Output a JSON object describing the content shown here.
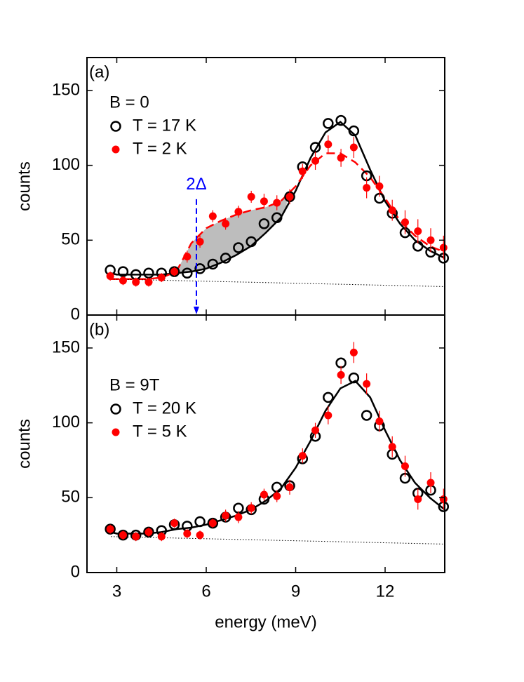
{
  "chart_data": [
    {
      "type": "scatter",
      "panel_label": "(a)",
      "annotation": "B = 0",
      "ylabel": "counts",
      "xlim": [
        2,
        14
      ],
      "ylim": [
        0,
        172
      ],
      "xticks": [
        3,
        6,
        9,
        12
      ],
      "yticks": [
        0,
        50,
        100,
        150
      ],
      "series": [
        {
          "name": "T = 17 K",
          "color": "#000000",
          "marker": "open",
          "x": [
            2.78,
            3.21,
            3.64,
            4.07,
            4.5,
            4.93,
            5.36,
            5.79,
            6.22,
            6.65,
            7.08,
            7.51,
            7.94,
            8.37,
            8.8,
            9.23,
            9.66,
            10.09,
            10.52,
            10.95,
            11.38,
            11.81,
            12.24,
            12.67,
            13.1,
            13.53,
            13.96
          ],
          "values": [
            30,
            29,
            27,
            28,
            28,
            29,
            28,
            31,
            34,
            38,
            45,
            49,
            61,
            65,
            79,
            99,
            112,
            128,
            130,
            123,
            93,
            78,
            68,
            55,
            46,
            42,
            38
          ]
        },
        {
          "name": "T = 2 K",
          "color": "#ff0000",
          "marker": "filled",
          "x": [
            2.78,
            3.21,
            3.64,
            4.07,
            4.5,
            4.93,
            5.36,
            5.79,
            6.22,
            6.65,
            7.08,
            7.51,
            7.94,
            8.37,
            8.8,
            9.23,
            9.66,
            10.09,
            10.52,
            10.95,
            11.38,
            11.81,
            12.24,
            12.67,
            13.1,
            13.53,
            13.96
          ],
          "values": [
            26,
            23,
            22,
            22,
            25,
            29,
            39,
            49,
            66,
            61,
            69,
            79,
            76,
            75,
            79,
            96,
            103,
            114,
            105,
            112,
            85,
            86,
            70,
            62,
            56,
            50,
            45
          ],
          "errors": [
            3,
            3,
            3,
            3,
            3,
            3,
            4,
            4,
            4,
            4,
            4,
            4,
            5,
            5,
            5,
            5,
            6,
            6,
            6,
            7,
            7,
            7,
            7,
            8,
            8,
            8,
            8
          ]
        }
      ],
      "lines": [
        {
          "color": "#000000",
          "style": "solid",
          "x": [
            2.8,
            3,
            3.5,
            4,
            4.5,
            5,
            5.5,
            6,
            6.5,
            7,
            7.5,
            8,
            8.5,
            9,
            9.5,
            10,
            10.5,
            11,
            11.5,
            12,
            12.5,
            13,
            13.5,
            14
          ],
          "values": [
            28,
            27,
            27,
            27,
            27,
            28,
            29,
            31,
            35,
            40,
            46,
            55,
            65,
            83,
            105,
            122,
            129,
            120,
            97,
            76,
            61,
            50,
            43,
            38
          ]
        },
        {
          "color": "#ff0000",
          "style": "dashed",
          "x": [
            2.8,
            3,
            3.5,
            4,
            4.5,
            5,
            5.5,
            6,
            6.5,
            7,
            7.5,
            8,
            8.5,
            9,
            9.5,
            10,
            10.5,
            11,
            11.5,
            12,
            12.5,
            13,
            13.5,
            14
          ],
          "values": [
            24,
            24,
            24,
            24,
            25,
            29,
            48,
            58,
            63,
            67,
            70,
            72,
            76,
            86,
            100,
            108,
            108,
            102,
            92,
            78,
            63,
            53,
            46,
            42
          ]
        },
        {
          "color": "#000000",
          "style": "dotted",
          "x": [
            2.8,
            14
          ],
          "values": [
            24,
            19
          ]
        }
      ],
      "shade_xlim": [
        5.1,
        8.7
      ],
      "gap_marker": {
        "label": "2Δ",
        "x": 5.67,
        "color": "#0000ff"
      }
    },
    {
      "type": "scatter",
      "panel_label": "(b)",
      "annotation": "B = 9T",
      "ylabel": "counts",
      "xlabel": "energy (meV)",
      "xlim": [
        2,
        14
      ],
      "ylim": [
        0,
        172
      ],
      "xticks": [
        3,
        6,
        9,
        12
      ],
      "yticks": [
        0,
        50,
        100,
        150
      ],
      "series": [
        {
          "name": "T = 20 K",
          "color": "#000000",
          "marker": "open",
          "x": [
            2.78,
            3.21,
            3.64,
            4.07,
            4.5,
            4.93,
            5.36,
            5.79,
            6.22,
            6.65,
            7.08,
            7.51,
            7.94,
            8.37,
            8.8,
            9.23,
            9.66,
            10.09,
            10.52,
            10.95,
            11.38,
            11.81,
            12.24,
            12.67,
            13.1,
            13.53,
            13.96
          ],
          "values": [
            29,
            25,
            25,
            27,
            28,
            32,
            31,
            34,
            33,
            37,
            43,
            42,
            49,
            57,
            58,
            76,
            91,
            117,
            140,
            130,
            105,
            98,
            79,
            63,
            53,
            55,
            44
          ]
        },
        {
          "name": "T = 5 K",
          "color": "#ff0000",
          "marker": "filled",
          "x": [
            2.78,
            3.21,
            3.64,
            4.07,
            4.5,
            4.93,
            5.36,
            5.79,
            6.22,
            6.65,
            7.08,
            7.51,
            7.94,
            8.37,
            8.8,
            9.23,
            9.66,
            10.09,
            10.52,
            10.95,
            11.38,
            11.81,
            12.24,
            12.67,
            13.1,
            13.53,
            13.96
          ],
          "values": [
            29,
            25,
            24,
            27,
            24,
            33,
            26,
            25,
            33,
            38,
            37,
            43,
            52,
            51,
            57,
            78,
            95,
            105,
            132,
            147,
            126,
            101,
            84,
            71,
            49,
            60,
            49
          ],
          "errors": [
            3,
            3,
            3,
            3,
            3,
            3,
            3,
            3,
            3,
            4,
            4,
            4,
            4,
            4,
            5,
            5,
            5,
            6,
            6,
            7,
            7,
            7,
            7,
            7,
            7,
            7,
            7
          ]
        }
      ],
      "lines": [
        {
          "color": "#000000",
          "style": "solid",
          "x": [
            2.8,
            3,
            3.5,
            4,
            4.5,
            5,
            5.5,
            6,
            6.5,
            7,
            7.5,
            8,
            8.5,
            9,
            9.5,
            10,
            10.5,
            11,
            11.5,
            12,
            12.5,
            13,
            13.5,
            14
          ],
          "values": [
            27,
            26,
            26,
            26,
            27,
            29,
            30,
            32,
            35,
            38,
            42,
            48,
            56,
            70,
            88,
            108,
            123,
            128,
            117,
            95,
            75,
            60,
            50,
            42
          ]
        },
        {
          "color": "#000000",
          "style": "dotted",
          "x": [
            2.8,
            14
          ],
          "values": [
            24,
            19
          ]
        }
      ]
    }
  ]
}
